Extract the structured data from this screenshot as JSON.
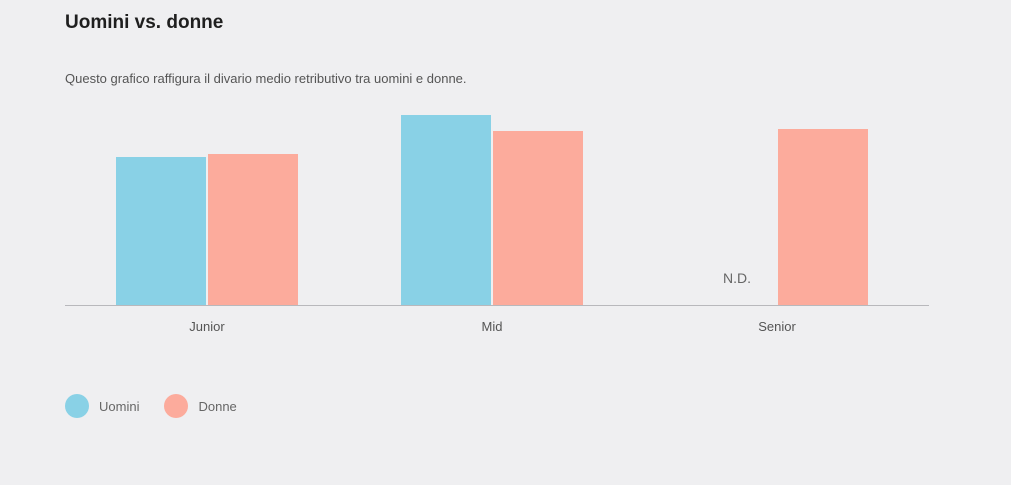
{
  "chart_data": {
    "type": "bar",
    "title": "Uomini vs. donne",
    "subtitle": "Questo grafico raffigura il divario medio retributivo tra uomini e donne.",
    "categories": [
      "Junior",
      "Mid",
      "Senior"
    ],
    "series": [
      {
        "name": "Uomini",
        "color": "#89d1e6",
        "values": [
          148,
          190,
          null
        ]
      },
      {
        "name": "Donne",
        "color": "#fcab9c",
        "values": [
          151,
          174,
          176
        ]
      }
    ],
    "missing_label": "N.D.",
    "ylim": [
      0,
      200
    ],
    "grid": false,
    "legend_position": "bottom-left",
    "xlabel": "",
    "ylabel": ""
  }
}
